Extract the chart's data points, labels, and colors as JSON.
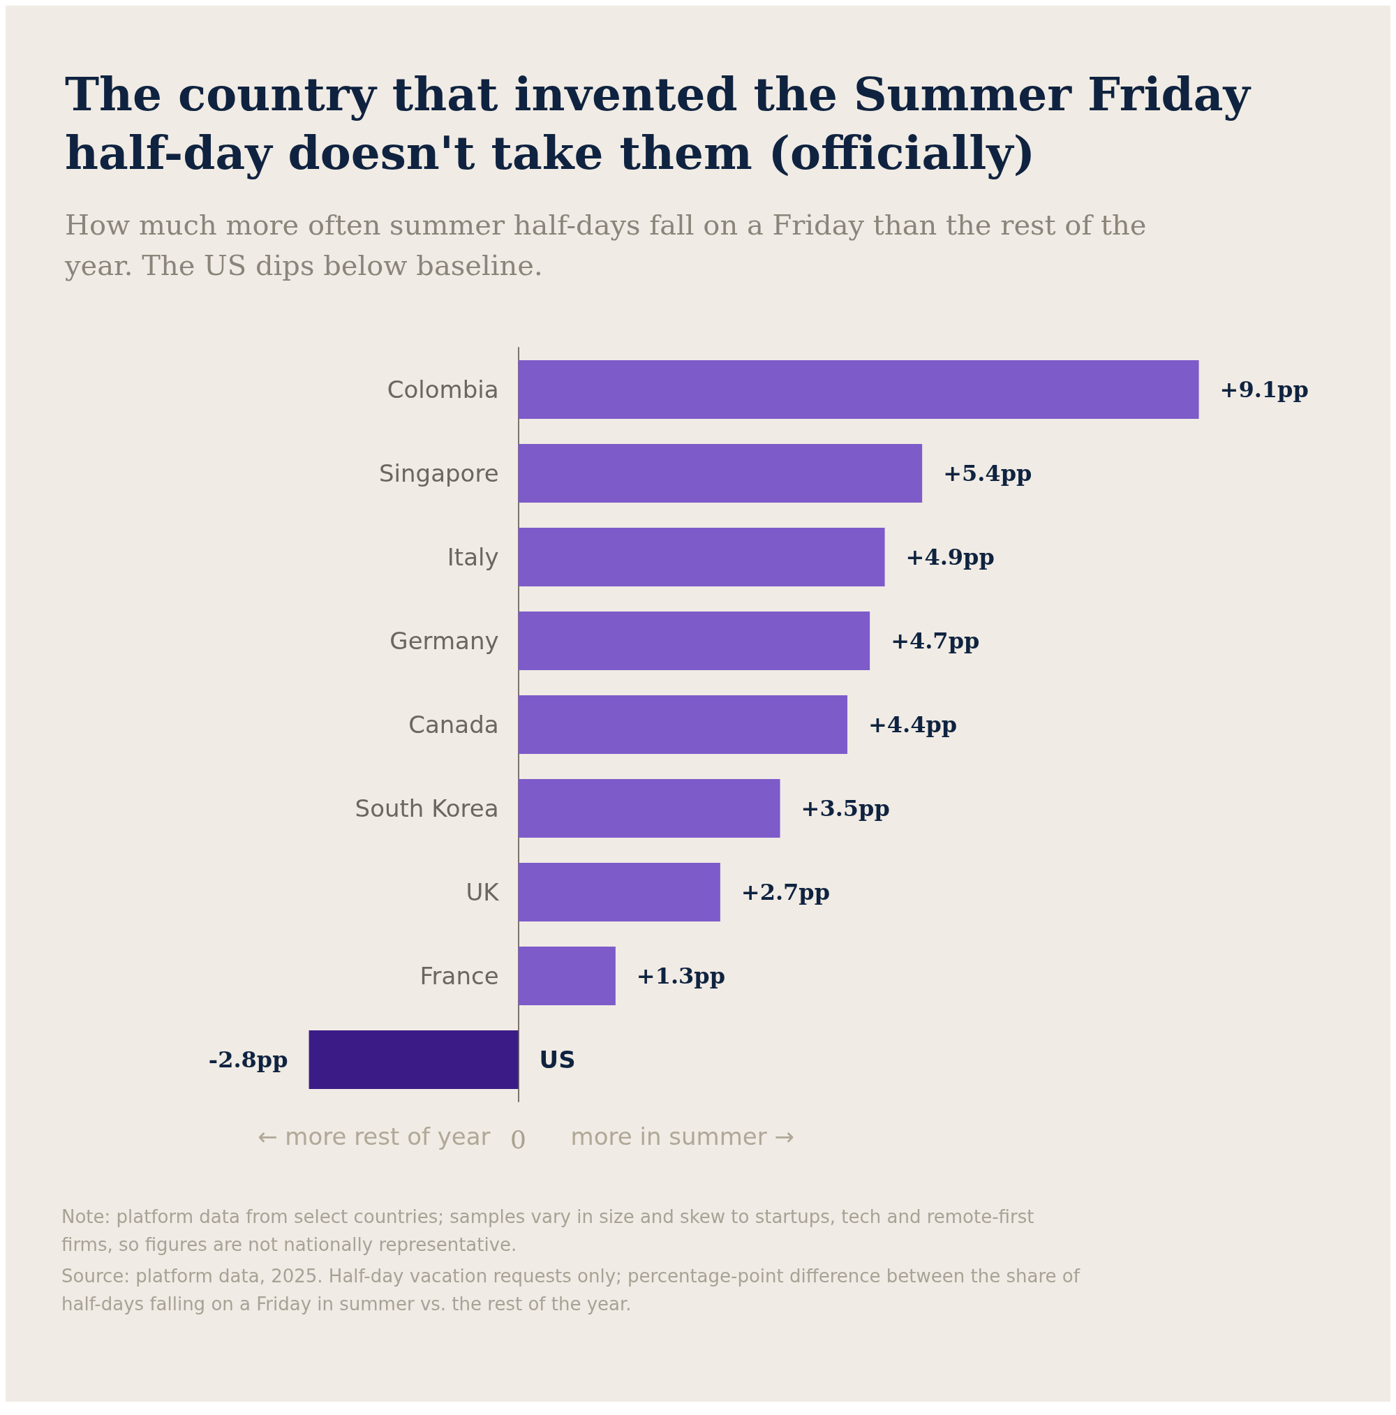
{
  "chart_data": {
    "type": "bar",
    "orientation": "horizontal",
    "title": "The country that invented the Summer Friday half-day doesn't take them (officially)",
    "subtitle": "How much more often summer half-days fall on a Friday than the rest of the year. The US dips below baseline.",
    "categories": [
      "Colombia",
      "Singapore",
      "Italy",
      "Germany",
      "Canada",
      "South Korea",
      "UK",
      "France",
      "US"
    ],
    "values": [
      9.1,
      5.4,
      4.9,
      4.7,
      4.4,
      3.5,
      2.7,
      1.3,
      -2.8
    ],
    "colors": [
      "#7d5bc9",
      "#7d5bc9",
      "#7d5bc9",
      "#7d5bc9",
      "#7d5bc9",
      "#7d5bc9",
      "#7d5bc9",
      "#7d5bc9",
      "#3b1c87"
    ],
    "value_labels": [
      "+9.1pp",
      "+5.4pp",
      "+4.9pp",
      "+4.7pp",
      "+4.4pp",
      "+3.5pp",
      "+2.7pp",
      "+1.3pp",
      "-2.8pp"
    ],
    "annotations": [
      "← more rest of year",
      "0",
      "more in summer →",
      "Note: platform data from select countries; samples vary in size and skew to startups, tech and remote-first firms, so figures are not nationally representative.",
      "Source: platform data, 2025. Half-day vacation requests only; percentage-point difference between the share of half-days falling on a Friday in summer vs. the rest of the year."
    ]
  }
}
